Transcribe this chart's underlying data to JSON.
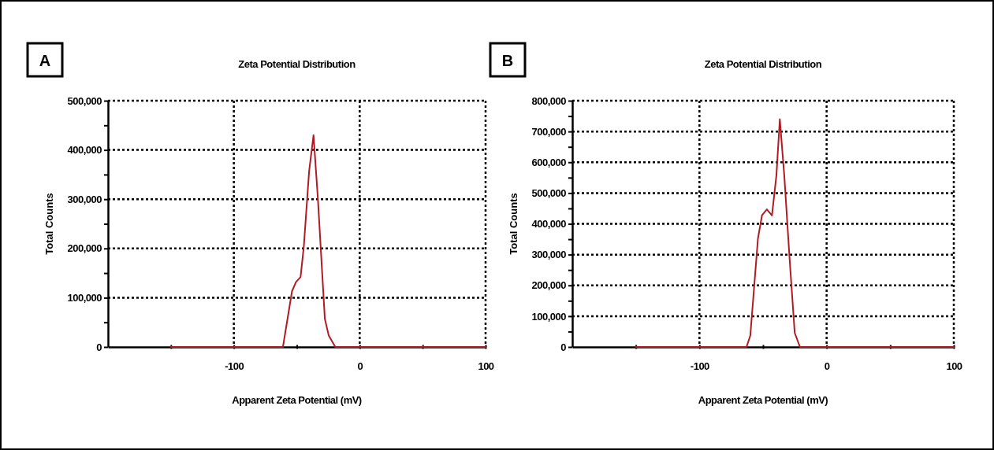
{
  "chart_data": [
    {
      "type": "line",
      "title": "Zeta Potential Distribution",
      "xlabel": "Apparent Zeta Potential (mV)",
      "ylabel": "Total Counts",
      "annotations": [
        "A"
      ],
      "series": [
        {
          "color": "#b01c24",
          "x": [
            -150,
            -61,
            -53.8,
            -50.6,
            -47,
            -44.4,
            -40.2,
            -36.7,
            -33.3,
            -27.7,
            -24.6,
            -19.4,
            100
          ],
          "values": [
            0,
            0,
            113000,
            132000,
            142000,
            204000,
            357000,
            430000,
            304000,
            57000,
            23000,
            0,
            0
          ]
        }
      ],
      "xlim": [
        -200,
        100
      ],
      "xticks": [
        {
          "value": -150,
          "label": null
        },
        -100,
        {
          "value": -50,
          "label": null
        },
        0,
        {
          "value": 50,
          "label": null
        },
        100
      ],
      "ylim": [
        0,
        500000
      ],
      "yticks": [
        {
          "value": 0,
          "label": "0"
        },
        {
          "value": 50000,
          "label": null
        },
        {
          "value": 100000,
          "label": "100,000"
        },
        {
          "value": 150000,
          "label": null
        },
        {
          "value": 200000,
          "label": "200,000"
        },
        {
          "value": 250000,
          "label": null
        },
        {
          "value": 300000,
          "label": "300,000"
        },
        {
          "value": 350000,
          "label": null
        },
        {
          "value": 400000,
          "label": "400,000"
        },
        {
          "value": 450000,
          "label": null
        },
        {
          "value": 500000,
          "label": "500,000"
        }
      ],
      "grid": true,
      "marker": "none",
      "line_style": "solid"
    },
    {
      "type": "line",
      "title": "Zeta Potential Distribution",
      "xlabel": "Apparent Zeta Potential (mV)",
      "ylabel": "Total Counts",
      "annotations": [
        "B"
      ],
      "series": [
        {
          "color": "#b01c24",
          "x": [
            -150,
            -63,
            -60,
            -54,
            -50.8,
            -47,
            -43,
            -39.5,
            -36.8,
            -33.3,
            -29.2,
            -25.1,
            -21,
            100
          ],
          "values": [
            0,
            0,
            37000,
            352000,
            428000,
            447000,
            427000,
            557000,
            740000,
            557000,
            292000,
            46000,
            0,
            0
          ]
        }
      ],
      "xlim": [
        -200,
        100
      ],
      "xticks": [
        {
          "value": -150,
          "label": null
        },
        -100,
        {
          "value": -50,
          "label": null
        },
        0,
        {
          "value": 50,
          "label": null
        },
        100
      ],
      "ylim": [
        0,
        800000
      ],
      "yticks": [
        {
          "value": 0,
          "label": "0"
        },
        {
          "value": 50000,
          "label": null
        },
        {
          "value": 100000,
          "label": "100,000"
        },
        {
          "value": 150000,
          "label": null
        },
        {
          "value": 200000,
          "label": "200,000"
        },
        {
          "value": 250000,
          "label": null
        },
        {
          "value": 300000,
          "label": "300,000"
        },
        {
          "value": 350000,
          "label": null
        },
        {
          "value": 400000,
          "label": "400,000"
        },
        {
          "value": 450000,
          "label": null
        },
        {
          "value": 500000,
          "label": "500,000"
        },
        {
          "value": 550000,
          "label": null
        },
        {
          "value": 600000,
          "label": "600,000"
        },
        {
          "value": 650000,
          "label": null
        },
        {
          "value": 700000,
          "label": "700,000"
        },
        {
          "value": 750000,
          "label": null
        },
        {
          "value": 800000,
          "label": "800,000"
        }
      ],
      "grid": true,
      "marker": "none",
      "line_style": "solid"
    }
  ]
}
